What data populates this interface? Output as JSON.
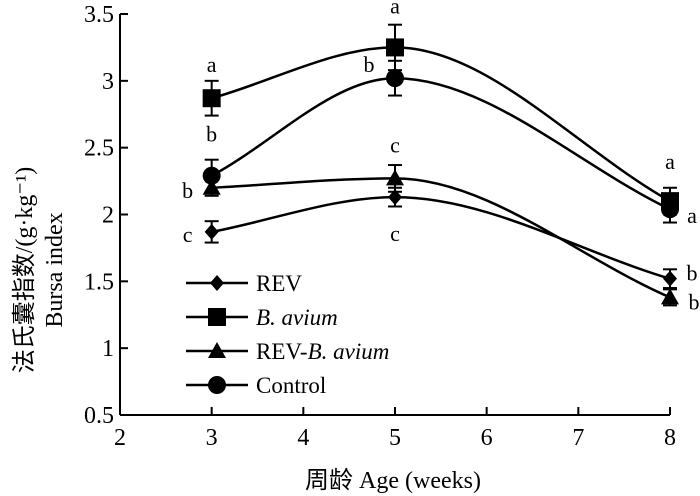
{
  "chart_data": {
    "type": "line",
    "xlabel": "周龄 Age (weeks)",
    "ylabel_cn": "法氏囊指数/(g·kg⁻¹)",
    "ylabel_en": "Bursa index",
    "xlim": [
      2,
      8
    ],
    "ylim": [
      0.5,
      3.5
    ],
    "x_ticks": [
      "2",
      "3",
      "4",
      "5",
      "6",
      "7",
      "8"
    ],
    "y_ticks": [
      "0.5",
      "1",
      "1.5",
      "2",
      "2.5",
      "3",
      "3.5"
    ],
    "x": [
      3,
      5,
      8
    ],
    "legend_position": "bottom-left",
    "series": [
      {
        "name": "REV",
        "legend_parts": [
          {
            "text": "REV",
            "italic": false
          }
        ],
        "marker": "diamond",
        "values": [
          1.87,
          2.13,
          1.52
        ],
        "errors": [
          0.08,
          0.07,
          0.07
        ],
        "labels": [
          "c",
          "c",
          "b"
        ]
      },
      {
        "name": "B. avium",
        "legend_parts": [
          {
            "text": "B. avium",
            "italic": true
          }
        ],
        "marker": "square",
        "values": [
          2.87,
          3.25,
          2.1
        ],
        "errors": [
          0.13,
          0.17,
          0.1
        ],
        "labels": [
          "a",
          "a",
          "a"
        ]
      },
      {
        "name": "REV-B. avium",
        "legend_parts": [
          {
            "text": "REV-",
            "italic": false
          },
          {
            "text": "B. avium",
            "italic": true
          }
        ],
        "marker": "triangle",
        "values": [
          2.2,
          2.27,
          1.38
        ],
        "errors": [
          0.06,
          0.1,
          0.06
        ],
        "labels": [
          "b",
          "c",
          "b"
        ]
      },
      {
        "name": "Control",
        "legend_parts": [
          {
            "text": "Control",
            "italic": false
          }
        ],
        "marker": "circle",
        "values": [
          2.29,
          3.02,
          2.04
        ],
        "errors": [
          0.12,
          0.13,
          0.1
        ],
        "labels": [
          "b",
          "b",
          "a"
        ]
      }
    ]
  }
}
